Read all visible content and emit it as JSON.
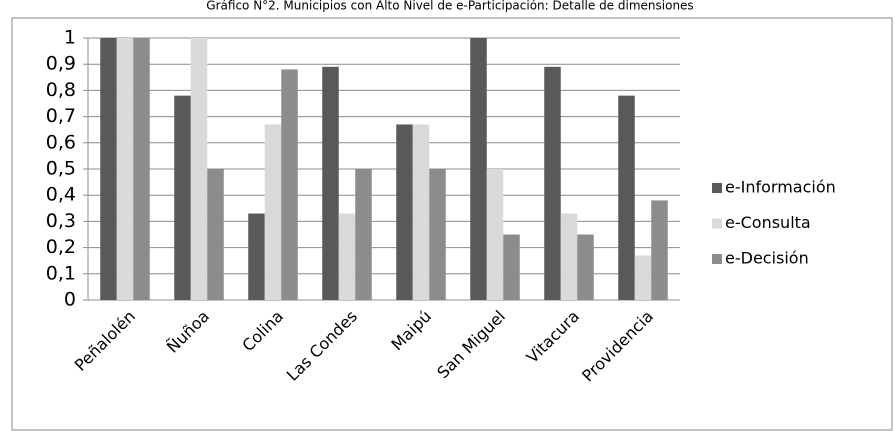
{
  "chart_data": {
    "type": "bar",
    "title": "Gráfico N°2. Municipios con Alto Nivel de e-Participación: Detalle de dimensiones",
    "categories": [
      "Peñalolén",
      "Ñuñoa",
      "Colina",
      "Las Condes",
      "Maipú",
      "San Miguel",
      "Vitacura",
      "Providencia"
    ],
    "series": [
      {
        "name": "e-Información",
        "color": "#595959",
        "values": [
          1,
          0.78,
          0.33,
          0.89,
          0.67,
          1,
          0.89,
          0.78
        ]
      },
      {
        "name": "e-Consulta",
        "color": "#d9d9d9",
        "values": [
          1,
          1,
          0.67,
          0.33,
          0.67,
          0.5,
          0.33,
          0.17
        ]
      },
      {
        "name": "e-Decisión",
        "color": "#8c8c8c",
        "values": [
          1,
          0.5,
          0.88,
          0.5,
          0.5,
          0.25,
          0.25,
          0.38
        ]
      }
    ],
    "ylim": [
      0,
      1
    ],
    "yticks": [
      0,
      {
        "value": 0.1,
        "label": "0,1"
      },
      {
        "value": 0.2,
        "label": "0,2"
      },
      {
        "value": 0.3,
        "label": "0,3"
      },
      {
        "value": 0.4,
        "label": "0,4"
      },
      {
        "value": 0.5,
        "label": "0,5"
      },
      {
        "value": 0.6,
        "label": "0,6"
      },
      {
        "value": 0.7,
        "label": "0,7"
      },
      {
        "value": 0.8,
        "label": "0,8"
      },
      {
        "value": 0.9,
        "label": "0,9"
      },
      1
    ],
    "grid": true,
    "legend": "right"
  }
}
